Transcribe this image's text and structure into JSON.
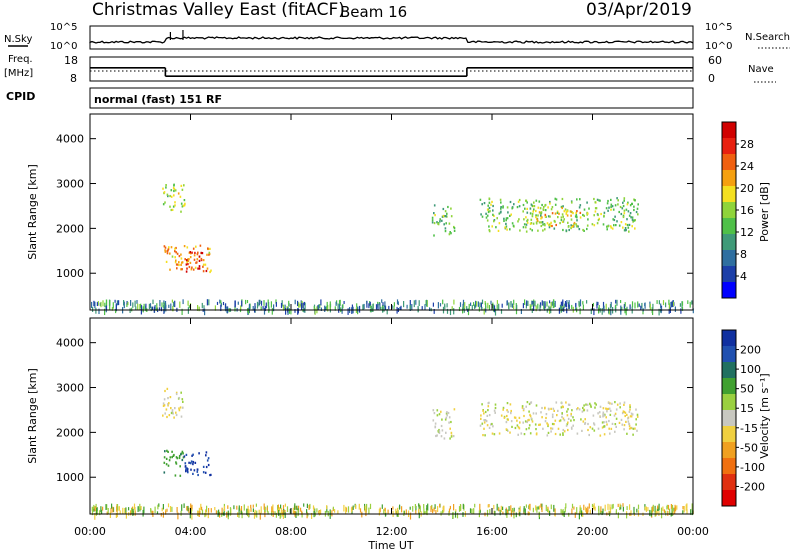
{
  "header": {
    "title": "Christmas Valley East (fitACF)",
    "beam": "Beam 16",
    "date": "03/Apr/2019"
  },
  "status_panels": {
    "nsky": {
      "label": "N.Sky",
      "left_ticks": [
        "10^5",
        "10^0"
      ],
      "right_ticks": [
        "10^5",
        "10^0"
      ],
      "right_label": "N.Search"
    },
    "freq": {
      "label_top": "Freq.",
      "label_bottom": "[MHz]",
      "left_ticks": [
        "18",
        "8"
      ],
      "right_ticks": [
        "60",
        "0"
      ],
      "right_label": "Nave",
      "solid_segments_mhz": [
        {
          "start": 0.0,
          "end": 3.0,
          "value": 13.5
        },
        {
          "start": 3.0,
          "end": 15.0,
          "value": 10.0
        },
        {
          "start": 15.0,
          "end": 24.0,
          "value": 13.5
        }
      ]
    },
    "cpid": {
      "label": "CPID",
      "value": "normal (fast) 151 RF"
    }
  },
  "chart_data": [
    {
      "type": "heatmap",
      "name": "power",
      "ylabel": "Slant Range [km]",
      "ylim": [
        180,
        4550
      ],
      "yticks": [
        "1000",
        "2000",
        "3000",
        "4000"
      ],
      "ytick_values": [
        1000,
        2000,
        3000,
        4000
      ],
      "xlim": [
        0,
        24
      ],
      "colorbar": {
        "label": "Power [dB]",
        "ticks": [
          "4",
          "8",
          "12",
          "16",
          "20",
          "24",
          "28"
        ],
        "tick_values": [
          4,
          8,
          12,
          16,
          20,
          24,
          28
        ],
        "range": [
          0,
          32
        ],
        "colors": [
          "#0000ff",
          "#1c3fa8",
          "#2f6fa0",
          "#3f9a78",
          "#4fc048",
          "#8fd43a",
          "#f4e020",
          "#f5a010",
          "#f06010",
          "#e82010",
          "#d00000"
        ]
      },
      "regions": [
        {
          "t": [
            2.85,
            3.75
          ],
          "r": [
            2350,
            3000
          ],
          "v": 16
        },
        {
          "t": [
            2.9,
            4.8
          ],
          "r": [
            1050,
            1650
          ],
          "v": 22
        },
        {
          "t": [
            3.8,
            4.6
          ],
          "r": [
            1000,
            1500
          ],
          "v": 27
        },
        {
          "t": [
            13.6,
            14.5
          ],
          "r": [
            1850,
            2550
          ],
          "v": 13
        },
        {
          "t": [
            15.5,
            21.8
          ],
          "r": [
            1950,
            2700
          ],
          "v": 14
        },
        {
          "t": [
            17.5,
            19.5
          ],
          "r": [
            2050,
            2500
          ],
          "v": 20
        }
      ],
      "ground_clutter_range": [
        200,
        420
      ]
    },
    {
      "type": "heatmap",
      "name": "velocity",
      "ylabel": "Slant Range [km]",
      "ylim": [
        180,
        4550
      ],
      "yticks": [
        "1000",
        "2000",
        "3000",
        "4000"
      ],
      "ytick_values": [
        1000,
        2000,
        3000,
        4000
      ],
      "xlim": [
        0,
        24
      ],
      "xticks": [
        "00:00",
        "04:00",
        "08:00",
        "12:00",
        "16:00",
        "20:00",
        "00:00"
      ],
      "xtick_values": [
        0,
        4,
        8,
        12,
        16,
        20,
        24
      ],
      "xlabel": "Time UT",
      "colorbar": {
        "label": "Velocity [m s⁻¹]",
        "ticks": [
          "200",
          "100",
          "50",
          "15",
          "-15",
          "-50",
          "-100",
          "-200"
        ],
        "tick_values": [
          200,
          100,
          50,
          15,
          -15,
          -50,
          -100,
          -200
        ],
        "colors": [
          "#1030a0",
          "#2050b0",
          "#207060",
          "#40a030",
          "#9ad040",
          "#c8c8c0",
          "#f0d040",
          "#f0a020",
          "#f07010",
          "#e03010",
          "#e00000"
        ]
      },
      "regions": [
        {
          "t": [
            2.85,
            3.75
          ],
          "r": [
            2350,
            3000
          ],
          "v": 0
        },
        {
          "t": [
            2.9,
            3.7
          ],
          "r": [
            1050,
            1650
          ],
          "v": 60
        },
        {
          "t": [
            3.7,
            4.8
          ],
          "r": [
            1050,
            1600
          ],
          "v": 180
        },
        {
          "t": [
            13.6,
            14.5
          ],
          "r": [
            1850,
            2550
          ],
          "v": 0
        },
        {
          "t": [
            15.5,
            21.8
          ],
          "r": [
            1950,
            2700
          ],
          "v": 0
        }
      ],
      "ground_clutter_range": [
        200,
        420
      ]
    }
  ]
}
